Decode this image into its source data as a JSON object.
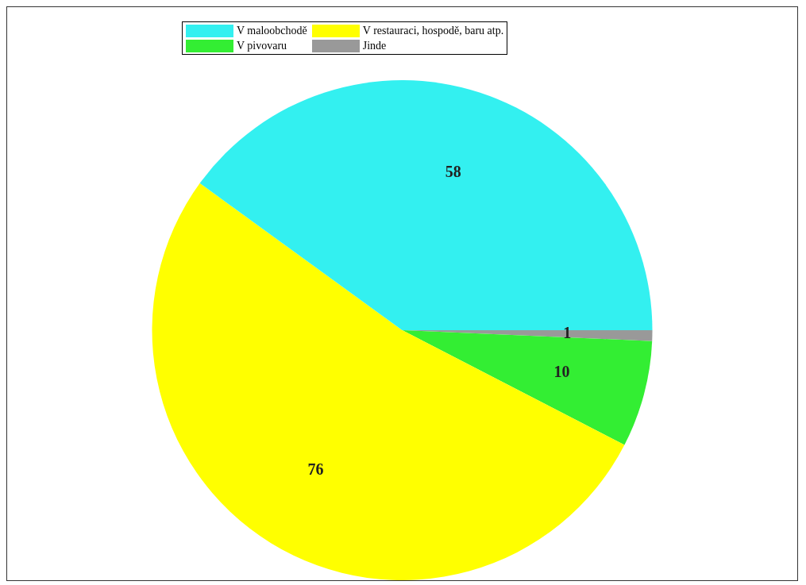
{
  "chart_data": {
    "type": "pie",
    "categories": [
      "V maloobchodě",
      "V restauraci, hospodě, baru atp.",
      "V pivovaru",
      "Jinde"
    ],
    "values": [
      58,
      76,
      10,
      1
    ],
    "colors": [
      "#33f0f0",
      "#ffff00",
      "#33ee33",
      "#999999"
    ],
    "legend": "top",
    "data_labels": true
  }
}
